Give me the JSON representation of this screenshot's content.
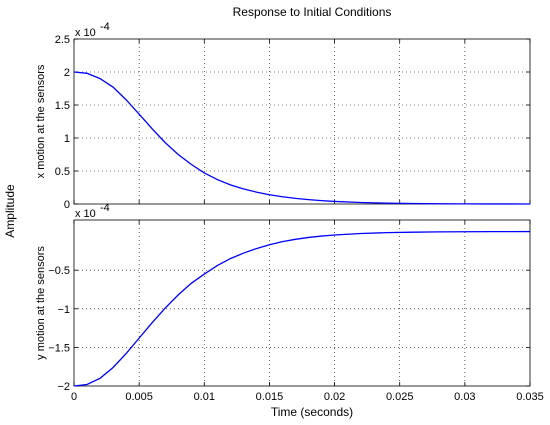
{
  "chart_data": {
    "type": "line",
    "title": "Response to Initial Conditions",
    "xlabel": "Time (seconds)",
    "ylabel": "Amplitude",
    "grid": true,
    "color": "#0000ff",
    "xlim": [
      0,
      0.035
    ],
    "xticks": [
      0,
      0.005,
      0.01,
      0.015,
      0.02,
      0.025,
      0.03,
      0.035
    ],
    "xtick_labels": [
      "0",
      "0.005",
      "0.01",
      "0.015",
      "0.02",
      "0.025",
      "0.03",
      "0.035"
    ],
    "panels": [
      {
        "ylabel": "x motion at the sensors",
        "exponent_label": "x 10",
        "exponent": "-4",
        "ylim": [
          0,
          2.5
        ],
        "yticks": [
          0,
          0.5,
          1,
          1.5,
          2,
          2.5
        ],
        "ytick_labels": [
          "0",
          "0.5",
          "1",
          "1.5",
          "2",
          "2.5"
        ],
        "x": [
          0,
          0.001,
          0.002,
          0.003,
          0.004,
          0.005,
          0.006,
          0.007,
          0.008,
          0.009,
          0.01,
          0.011,
          0.012,
          0.013,
          0.014,
          0.015,
          0.016,
          0.017,
          0.018,
          0.019,
          0.02,
          0.022,
          0.024,
          0.026,
          0.028,
          0.03,
          0.032,
          0.035
        ],
        "y": [
          2.0,
          1.98,
          1.9,
          1.77,
          1.58,
          1.36,
          1.14,
          0.93,
          0.75,
          0.6,
          0.47,
          0.37,
          0.29,
          0.23,
          0.18,
          0.14,
          0.11,
          0.085,
          0.066,
          0.051,
          0.039,
          0.023,
          0.013,
          0.008,
          0.004,
          0.002,
          0.001,
          0.0
        ]
      },
      {
        "ylabel": "y motion at the sensors",
        "exponent_label": "x 10",
        "exponent": "-4",
        "ylim": [
          -2,
          0.15
        ],
        "yticks": [
          -2,
          -1.5,
          -1,
          -0.5
        ],
        "ytick_labels": [
          "−2",
          "−1.5",
          "−1",
          "−0.5"
        ],
        "x": [
          0,
          0.001,
          0.002,
          0.003,
          0.004,
          0.005,
          0.006,
          0.007,
          0.008,
          0.009,
          0.01,
          0.011,
          0.012,
          0.013,
          0.014,
          0.015,
          0.016,
          0.017,
          0.018,
          0.019,
          0.02,
          0.022,
          0.024,
          0.026,
          0.028,
          0.03,
          0.032,
          0.035
        ],
        "y": [
          -2.0,
          -1.98,
          -1.9,
          -1.76,
          -1.58,
          -1.38,
          -1.18,
          -0.99,
          -0.82,
          -0.67,
          -0.55,
          -0.44,
          -0.35,
          -0.28,
          -0.22,
          -0.17,
          -0.13,
          -0.1,
          -0.076,
          -0.058,
          -0.044,
          -0.025,
          -0.014,
          -0.008,
          -0.004,
          -0.002,
          -0.001,
          0.0
        ]
      }
    ]
  }
}
